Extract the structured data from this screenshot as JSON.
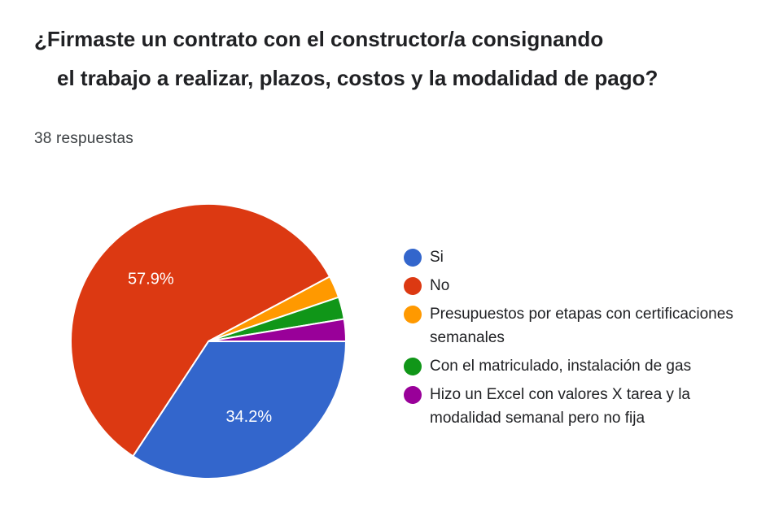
{
  "question": {
    "line1": "¿Firmaste un contrato con el constructor/a consignando",
    "line2": "el trabajo a realizar, plazos, costos y la modalidad de pago?"
  },
  "response_count": "38 respuestas",
  "chart_data": {
    "type": "pie",
    "slices": [
      {
        "label": "Si",
        "percent": 34.2,
        "color": "#3366cc",
        "data_label": "34.2%"
      },
      {
        "label": "No",
        "percent": 57.9,
        "color": "#dc3912",
        "data_label": "57.9%"
      },
      {
        "label": "Presupuestos por etapas con certificaciones semanales",
        "percent": 2.6,
        "color": "#ff9900",
        "data_label": ""
      },
      {
        "label": "Con el matriculado, instalación de gas",
        "percent": 2.6,
        "color": "#109618",
        "data_label": ""
      },
      {
        "label": "Hizo un Excel con valores X tarea y la modalidad semanal pero no fija",
        "percent": 2.6,
        "color": "#990099",
        "data_label": ""
      }
    ],
    "legend_position": "right",
    "start_angle": "3 o'clock, clockwise"
  }
}
